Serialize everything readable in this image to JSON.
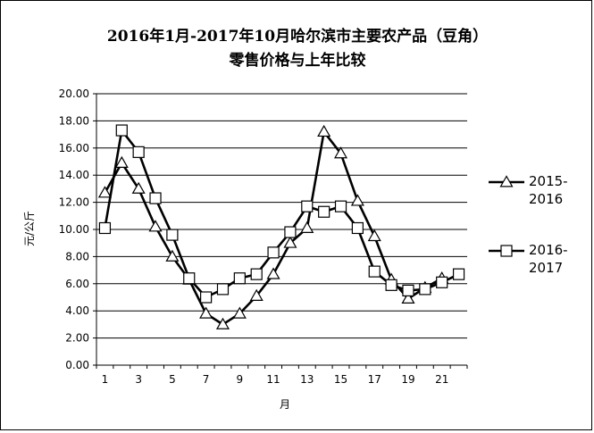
{
  "chart_data": {
    "type": "line",
    "title_line1": "2016年1月-2017年10月哈尔滨市主要农产品（豆角）",
    "title_line2": "零售价格与上年比较",
    "xlabel": "月",
    "ylabel": "元/公斤",
    "ylim": [
      0,
      20
    ],
    "y_ticks": [
      "0.00",
      "2.00",
      "4.00",
      "6.00",
      "8.00",
      "10.00",
      "12.00",
      "14.00",
      "16.00",
      "18.00",
      "20.00"
    ],
    "x_ticks": [
      "1",
      "3",
      "5",
      "7",
      "9",
      "11",
      "13",
      "15",
      "17",
      "19",
      "21"
    ],
    "x": [
      1,
      2,
      3,
      4,
      5,
      6,
      7,
      8,
      9,
      10,
      11,
      12,
      13,
      14,
      15,
      16,
      17,
      18,
      19,
      20,
      21,
      22
    ],
    "grid": true,
    "legend_position": "right",
    "series": [
      {
        "name": "2015-2016",
        "marker": "triangle",
        "color": "#000000",
        "values": [
          12.7,
          14.9,
          13.0,
          10.2,
          8.0,
          6.3,
          3.8,
          3.0,
          3.8,
          5.1,
          6.7,
          9.0,
          10.1,
          17.2,
          15.6,
          12.1,
          9.5,
          6.3,
          4.9,
          5.7,
          6.4,
          null
        ]
      },
      {
        "name": "2016-2017",
        "marker": "square",
        "color": "#000000",
        "values": [
          10.1,
          17.3,
          15.7,
          12.3,
          9.6,
          6.4,
          5.0,
          5.6,
          6.4,
          6.7,
          8.3,
          9.8,
          11.7,
          11.3,
          11.7,
          10.1,
          6.9,
          5.9,
          5.5,
          5.6,
          6.1,
          6.7
        ]
      }
    ],
    "legend": [
      {
        "line1": "2015-",
        "line2": "2016"
      },
      {
        "line1": "2016-",
        "line2": "2017"
      }
    ]
  }
}
